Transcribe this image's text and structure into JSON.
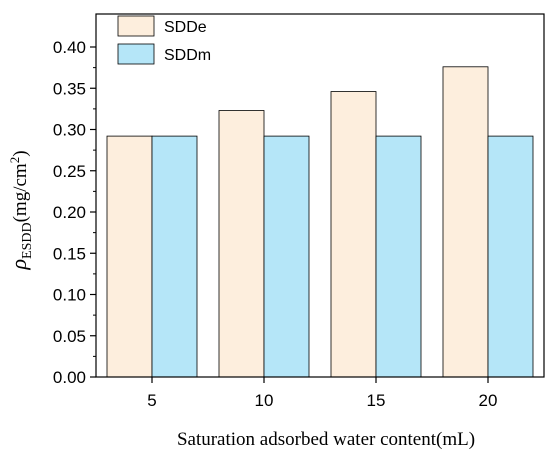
{
  "chart_data": {
    "type": "bar",
    "categories": [
      "5",
      "10",
      "15",
      "20"
    ],
    "series": [
      {
        "name": "SDDe",
        "values": [
          0.292,
          0.323,
          0.346,
          0.376
        ],
        "color": "#fdeedd"
      },
      {
        "name": "SDDm",
        "values": [
          0.292,
          0.292,
          0.292,
          0.292
        ],
        "color": "#b5e6f8"
      }
    ],
    "xlabel": "Saturation adsorbed water content(mL)",
    "ylabel": {
      "symbol": "ρ",
      "subscript": "ESDD",
      "unit_prefix": "(mg/cm",
      "unit_superscript": "2",
      "unit_suffix": ")"
    },
    "ylim": [
      0,
      0.44
    ],
    "yticks": [
      "0.00",
      "0.05",
      "0.10",
      "0.15",
      "0.20",
      "0.25",
      "0.30",
      "0.35",
      "0.40"
    ],
    "grid": false,
    "legend_position": "top-left",
    "axis_color": "#000000",
    "bar_stroke_color": "#000000"
  }
}
